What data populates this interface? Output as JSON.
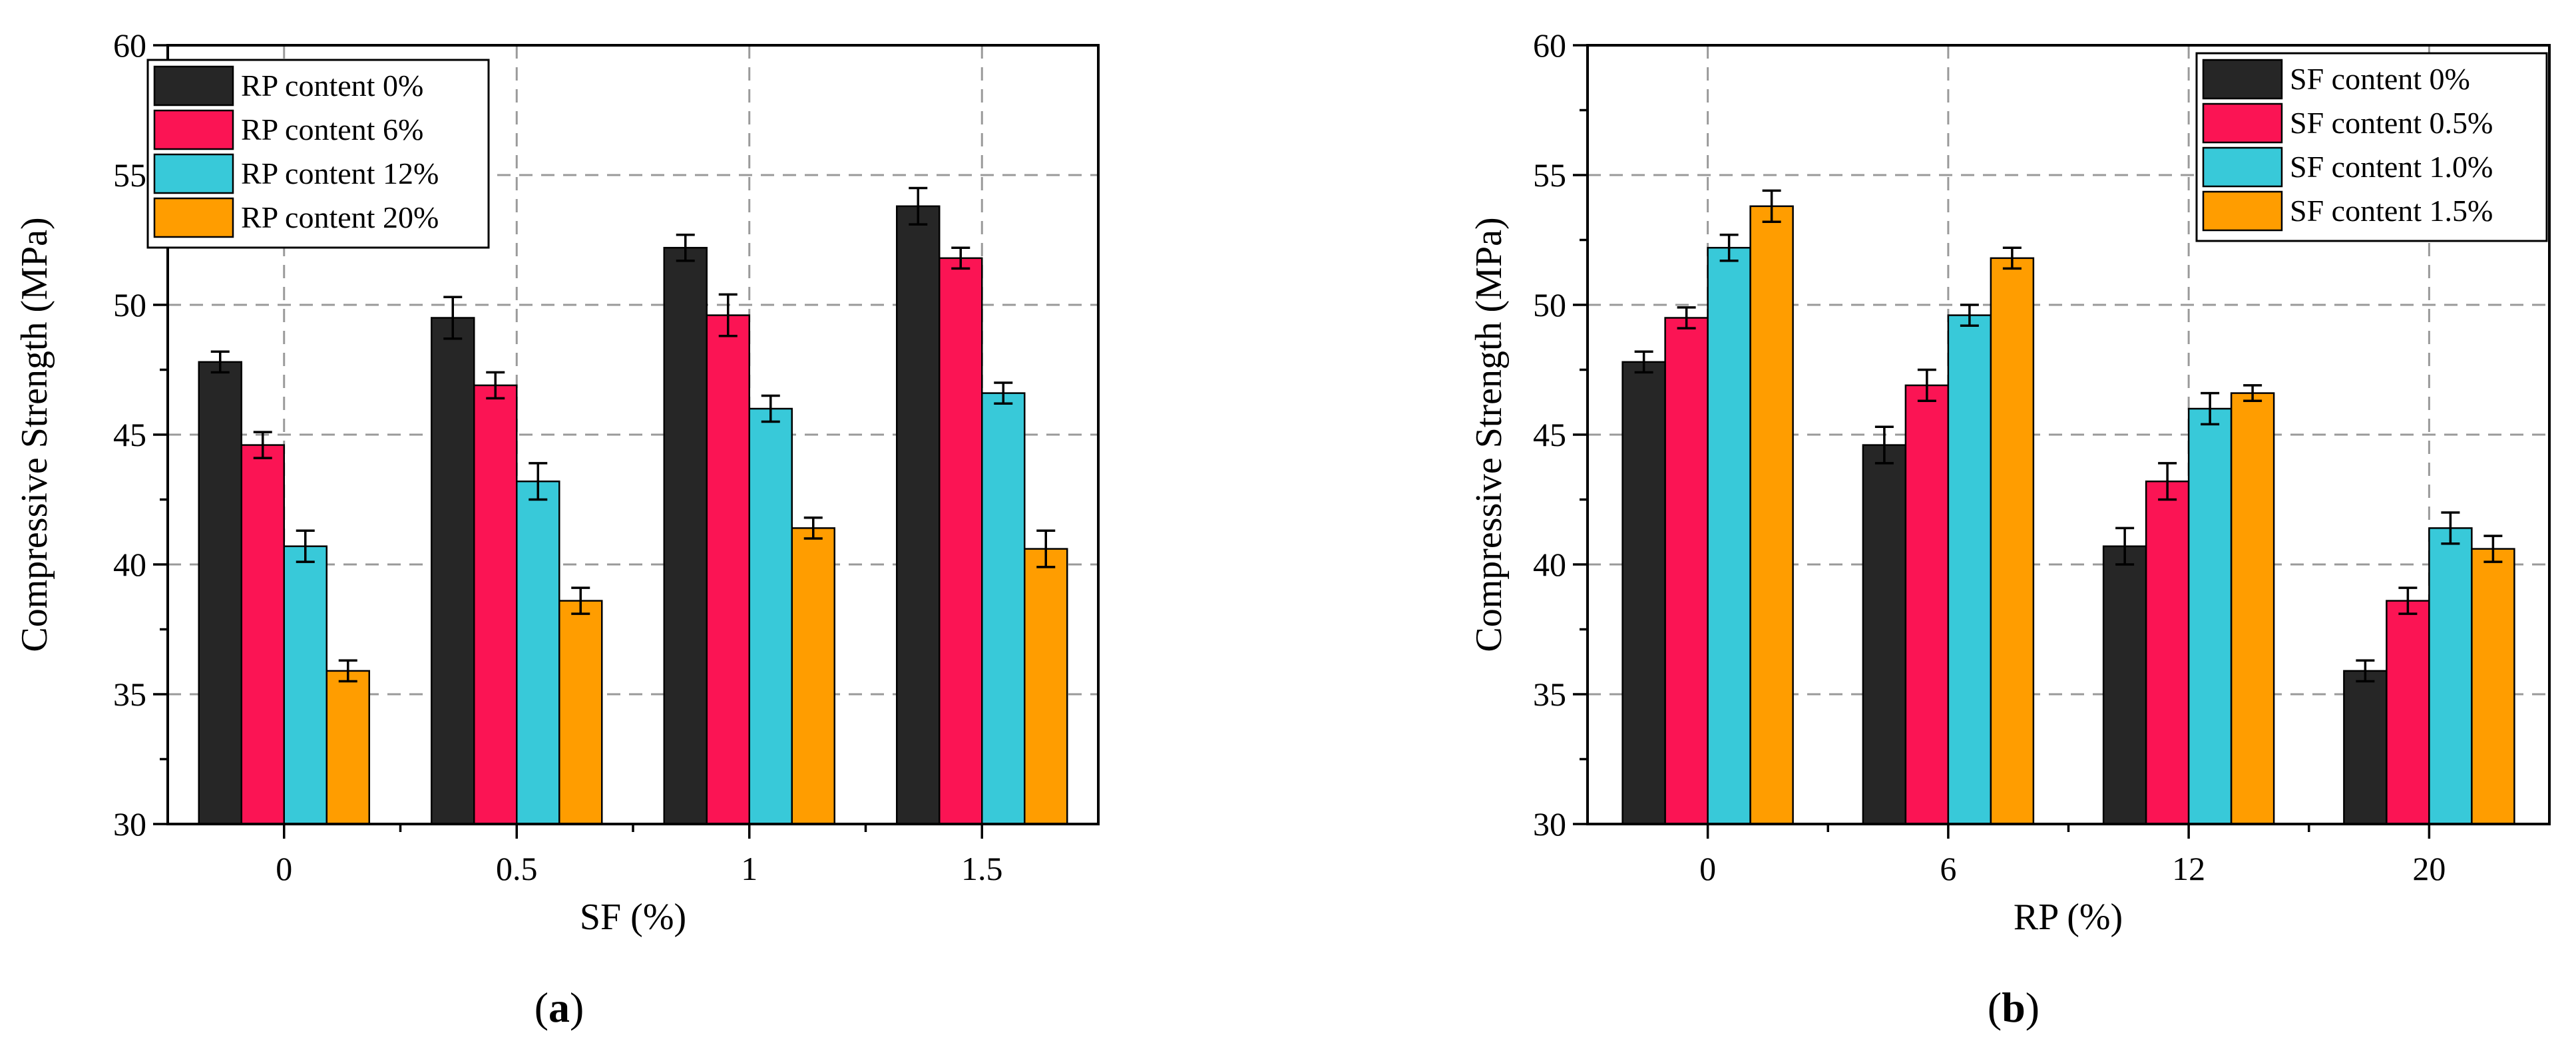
{
  "colors": {
    "series": [
      "#262626",
      "#fb1454",
      "#38c9d9",
      "#ff9d00"
    ],
    "grid": "#9a9a9a",
    "axis": "#000000"
  },
  "chart_data": [
    {
      "type": "bar",
      "panel_label": "a",
      "categories": [
        "0",
        "0.5",
        "1",
        "1.5"
      ],
      "series": [
        {
          "name": "RP content 0%",
          "values": [
            47.8,
            49.5,
            52.2,
            53.8
          ],
          "errors": [
            0.4,
            0.8,
            0.5,
            0.7
          ]
        },
        {
          "name": "RP content 6%",
          "values": [
            44.6,
            46.9,
            49.6,
            51.8
          ],
          "errors": [
            0.5,
            0.5,
            0.8,
            0.4
          ]
        },
        {
          "name": "RP content 12%",
          "values": [
            40.7,
            43.2,
            46.0,
            46.6
          ],
          "errors": [
            0.6,
            0.7,
            0.5,
            0.4
          ]
        },
        {
          "name": "RP content 20%",
          "values": [
            35.9,
            38.6,
            41.4,
            40.6
          ],
          "errors": [
            0.4,
            0.5,
            0.4,
            0.7
          ]
        }
      ],
      "title": "",
      "xlabel": "SF (%)",
      "ylabel": "Compressive Strength (MPa)",
      "ylim": [
        30,
        60
      ],
      "yticks": [
        "30",
        "35",
        "40",
        "45",
        "50",
        "55",
        "60"
      ],
      "grid": true,
      "legend_position": "top-left"
    },
    {
      "type": "bar",
      "panel_label": "b",
      "categories": [
        "0",
        "6",
        "12",
        "20"
      ],
      "series": [
        {
          "name": "SF content 0%",
          "values": [
            47.8,
            44.6,
            40.7,
            35.9
          ],
          "errors": [
            0.4,
            0.7,
            0.7,
            0.4
          ]
        },
        {
          "name": "SF content 0.5%",
          "values": [
            49.5,
            46.9,
            43.2,
            38.6
          ],
          "errors": [
            0.4,
            0.6,
            0.7,
            0.5
          ]
        },
        {
          "name": "SF content 1.0%",
          "values": [
            52.2,
            49.6,
            46.0,
            41.4
          ],
          "errors": [
            0.5,
            0.4,
            0.6,
            0.6
          ]
        },
        {
          "name": "SF content 1.5%",
          "values": [
            53.8,
            51.8,
            46.6,
            40.6
          ],
          "errors": [
            0.6,
            0.4,
            0.3,
            0.5
          ]
        }
      ],
      "title": "",
      "xlabel": "RP (%)",
      "ylabel": "Compressive Strength (MPa)",
      "ylim": [
        30,
        60
      ],
      "yticks": [
        "30",
        "35",
        "40",
        "45",
        "50",
        "55",
        "60"
      ],
      "grid": true,
      "legend_position": "top-right"
    }
  ]
}
